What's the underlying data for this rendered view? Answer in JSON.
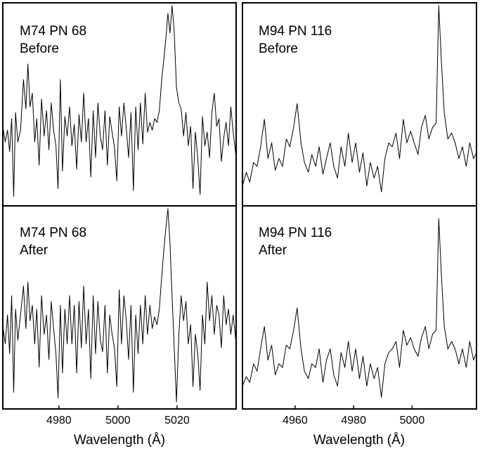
{
  "chart_data": [
    {
      "type": "line",
      "panel_label": [
        "M74 PN 68",
        "Before"
      ],
      "xlim": [
        4961,
        5040
      ],
      "ylim": [
        0,
        1
      ],
      "xticks": [
        4980,
        5000,
        5020
      ],
      "xlabel": "Wavelength (Å)",
      "x": [
        4961,
        4961.8,
        4962.6,
        4963.3,
        4964,
        4964.7,
        4965.3,
        4966.1,
        4967,
        4968,
        4968.8,
        4969.5,
        4970.2,
        4971,
        4971.8,
        4972.5,
        4973.3,
        4974.1,
        4975,
        4975.8,
        4976.6,
        4977.4,
        4978.2,
        4979,
        4979.7,
        4980.5,
        4981.2,
        4982,
        4982.8,
        4983.6,
        4984.4,
        4985.2,
        4986,
        4986.8,
        4987.6,
        4988.4,
        4989.2,
        4990,
        4990.8,
        4991.6,
        4992.4,
        4993.2,
        4994,
        4994.8,
        4995.6,
        4996.4,
        4997.2,
        4998,
        4998.8,
        4999.6,
        5000.4,
        5001.2,
        5002,
        5002.8,
        5003.6,
        5004.4,
        5005.2,
        5006,
        5006.8,
        5007.6,
        5008.4,
        5009.2,
        5010,
        5010.8,
        5011.6,
        5012.4,
        5013.2,
        5014,
        5014.8,
        5015.5,
        5016.2,
        5016.9,
        5017.6,
        5018.3,
        5019,
        5019.8,
        5020.6,
        5021.4,
        5022.2,
        5023,
        5023.8,
        5024.6,
        5025.4,
        5026.2,
        5027,
        5027.8,
        5028.6,
        5029.4,
        5030.2,
        5031,
        5031.8,
        5032.6,
        5033.4,
        5034.2,
        5035,
        5035.8,
        5036.6,
        5037.4,
        5038.2,
        5039,
        5040
      ],
      "y": [
        0.38,
        0.3,
        0.36,
        0.25,
        0.42,
        0.02,
        0.45,
        0.3,
        0.36,
        0.62,
        0.47,
        0.7,
        0.48,
        0.55,
        0.3,
        0.42,
        0.18,
        0.52,
        0.33,
        0.46,
        0.26,
        0.5,
        0.36,
        0.28,
        0.06,
        0.62,
        0.15,
        0.43,
        0.33,
        0.48,
        0.28,
        0.39,
        0.16,
        0.44,
        0.3,
        0.55,
        0.3,
        0.42,
        0.12,
        0.46,
        0.22,
        0.5,
        0.33,
        0.26,
        0.46,
        0.18,
        0.43,
        0.35,
        0.27,
        0.1,
        0.48,
        0.33,
        0.5,
        0.37,
        0.22,
        0.45,
        0.05,
        0.48,
        0.26,
        0.5,
        0.29,
        0.55,
        0.35,
        0.4,
        0.36,
        0.42,
        0.4,
        0.46,
        0.62,
        0.72,
        0.83,
        0.96,
        0.86,
        1.0,
        0.88,
        0.58,
        0.5,
        0.47,
        0.33,
        0.45,
        0.28,
        0.38,
        0.06,
        0.35,
        0.22,
        0.03,
        0.43,
        0.28,
        0.35,
        0.22,
        0.45,
        0.55,
        0.38,
        0.42,
        0.2,
        0.32,
        0.4,
        0.28,
        0.48,
        0.35,
        0.22
      ]
    },
    {
      "type": "line",
      "panel_label": [
        "M94 PN 116",
        "Before"
      ],
      "xlim": [
        4942,
        5022
      ],
      "ylim": [
        0,
        1
      ],
      "xticks": [
        4960,
        4980,
        5000
      ],
      "xlabel": "Wavelength (Å)",
      "x": [
        4942,
        4943.3,
        4944.5,
        4945.8,
        4947,
        4948.2,
        4949.5,
        4950.7,
        4952,
        4953.2,
        4954.5,
        4955.7,
        4957,
        4958.2,
        4959.5,
        4960.7,
        4962,
        4963.2,
        4964.5,
        4965.7,
        4967,
        4968.2,
        4969.5,
        4970.7,
        4972,
        4973.2,
        4974.5,
        4975.7,
        4977,
        4978.2,
        4979.5,
        4980.7,
        4982,
        4983.2,
        4984.5,
        4985.7,
        4987,
        4988.2,
        4989.5,
        4990.7,
        4992,
        4993.2,
        4994.5,
        4995.7,
        4997,
        4998.2,
        4999.5,
        5000.7,
        5002,
        5003.2,
        5004.5,
        5005.7,
        5007,
        5008.2,
        5009.1,
        5010,
        5011,
        5012.2,
        5013.5,
        5014.7,
        5016,
        5017.2,
        5018.5,
        5019.7,
        5021,
        5022
      ],
      "y": [
        0.08,
        0.15,
        0.1,
        0.2,
        0.18,
        0.28,
        0.42,
        0.22,
        0.3,
        0.16,
        0.22,
        0.18,
        0.32,
        0.28,
        0.38,
        0.5,
        0.3,
        0.2,
        0.15,
        0.24,
        0.18,
        0.28,
        0.14,
        0.22,
        0.3,
        0.18,
        0.12,
        0.28,
        0.18,
        0.35,
        0.2,
        0.3,
        0.15,
        0.25,
        0.08,
        0.2,
        0.12,
        0.18,
        0.05,
        0.22,
        0.3,
        0.28,
        0.35,
        0.22,
        0.42,
        0.3,
        0.36,
        0.3,
        0.24,
        0.38,
        0.44,
        0.32,
        0.38,
        0.4,
        1.0,
        0.72,
        0.45,
        0.32,
        0.35,
        0.3,
        0.22,
        0.28,
        0.18,
        0.3,
        0.22,
        0.25
      ]
    },
    {
      "type": "line",
      "panel_label": [
        "M74 PN 68",
        "After"
      ],
      "xlim": [
        4961,
        5040
      ],
      "ylim": [
        0,
        1
      ],
      "xticks": [
        4980,
        5000,
        5020
      ],
      "xlabel": "Wavelength (Å)",
      "x": [
        4961,
        4961.8,
        4962.6,
        4963.3,
        4964,
        4964.7,
        4965.3,
        4966.1,
        4967,
        4968,
        4968.8,
        4969.5,
        4970.2,
        4971,
        4971.8,
        4972.5,
        4973.3,
        4974.1,
        4975,
        4975.8,
        4976.6,
        4977.4,
        4978.2,
        4979,
        4979.7,
        4980.5,
        4981.2,
        4982,
        4982.8,
        4983.6,
        4984.4,
        4985.2,
        4986,
        4986.8,
        4987.6,
        4988.4,
        4989.2,
        4990,
        4990.8,
        4991.6,
        4992.4,
        4993.2,
        4994,
        4994.8,
        4995.6,
        4996.4,
        4997.2,
        4998,
        4998.8,
        4999.6,
        5000.4,
        5001.2,
        5002,
        5002.8,
        5003.6,
        5004.4,
        5005.2,
        5006,
        5006.8,
        5007.6,
        5008.4,
        5009.2,
        5010,
        5010.8,
        5011.6,
        5012.4,
        5013.2,
        5014,
        5014.8,
        5015.5,
        5016.2,
        5016.9,
        5017.6,
        5018.3,
        5019,
        5019.8,
        5020.6,
        5021.4,
        5022.2,
        5023,
        5023.8,
        5024.6,
        5025.4,
        5026.2,
        5027,
        5027.8,
        5028.6,
        5029.4,
        5030.2,
        5031,
        5031.8,
        5032.6,
        5033.4,
        5034.2,
        5035,
        5035.8,
        5036.6,
        5037.4,
        5038.2,
        5039,
        5040
      ],
      "y": [
        0.4,
        0.3,
        0.45,
        0.25,
        0.55,
        0.05,
        0.48,
        0.32,
        0.45,
        0.6,
        0.38,
        0.62,
        0.42,
        0.5,
        0.3,
        0.48,
        0.18,
        0.55,
        0.35,
        0.45,
        0.22,
        0.52,
        0.38,
        0.25,
        0.02,
        0.5,
        0.15,
        0.48,
        0.3,
        0.55,
        0.3,
        0.5,
        0.15,
        0.52,
        0.28,
        0.6,
        0.3,
        0.48,
        0.12,
        0.55,
        0.25,
        0.52,
        0.32,
        0.26,
        0.5,
        0.15,
        0.45,
        0.35,
        0.28,
        0.08,
        0.58,
        0.3,
        0.55,
        0.42,
        0.22,
        0.5,
        0.05,
        0.45,
        0.25,
        0.5,
        0.3,
        0.55,
        0.35,
        0.5,
        0.38,
        0.44,
        0.4,
        0.48,
        0.65,
        0.78,
        0.9,
        1.0,
        0.82,
        0.55,
        0.3,
        0.0,
        0.35,
        0.55,
        0.42,
        0.52,
        0.3,
        0.4,
        0.08,
        0.35,
        0.25,
        0.06,
        0.45,
        0.3,
        0.62,
        0.42,
        0.55,
        0.35,
        0.5,
        0.45,
        0.28,
        0.55,
        0.4,
        0.48,
        0.35,
        0.45,
        0.3
      ]
    },
    {
      "type": "line",
      "panel_label": [
        "M94 PN 116",
        "After"
      ],
      "xlim": [
        4942,
        5022
      ],
      "ylim": [
        0,
        1
      ],
      "xticks": [
        4960,
        4980,
        5000
      ],
      "xlabel": "Wavelength (Å)",
      "x": [
        4942,
        4943.3,
        4944.5,
        4945.8,
        4947,
        4948.2,
        4949.5,
        4950.7,
        4952,
        4953.2,
        4954.5,
        4955.7,
        4957,
        4958.2,
        4959.5,
        4960.7,
        4962,
        4963.2,
        4964.5,
        4965.7,
        4967,
        4968.2,
        4969.5,
        4970.7,
        4972,
        4973.2,
        4974.5,
        4975.7,
        4977,
        4978.2,
        4979.5,
        4980.7,
        4982,
        4983.2,
        4984.5,
        4985.7,
        4987,
        4988.2,
        4989.5,
        4990.7,
        4992,
        4993.2,
        4994.5,
        4995.7,
        4997,
        4998.2,
        4999.5,
        5000.7,
        5002,
        5003.2,
        5004.5,
        5005.7,
        5007,
        5008.2,
        5009.1,
        5010,
        5011,
        5012.2,
        5013.5,
        5014.7,
        5016,
        5017.2,
        5018.5,
        5019.7,
        5021,
        5022
      ],
      "y": [
        0.1,
        0.15,
        0.12,
        0.22,
        0.18,
        0.3,
        0.42,
        0.24,
        0.32,
        0.16,
        0.22,
        0.2,
        0.32,
        0.3,
        0.4,
        0.52,
        0.3,
        0.18,
        0.14,
        0.22,
        0.2,
        0.3,
        0.12,
        0.24,
        0.3,
        0.16,
        0.1,
        0.28,
        0.2,
        0.34,
        0.18,
        0.3,
        0.14,
        0.26,
        0.1,
        0.22,
        0.14,
        0.2,
        0.04,
        0.22,
        0.28,
        0.3,
        0.34,
        0.2,
        0.4,
        0.32,
        0.36,
        0.3,
        0.26,
        0.36,
        0.42,
        0.3,
        0.38,
        0.4,
        1.0,
        0.7,
        0.42,
        0.3,
        0.34,
        0.3,
        0.22,
        0.3,
        0.2,
        0.34,
        0.24,
        0.28
      ]
    }
  ]
}
